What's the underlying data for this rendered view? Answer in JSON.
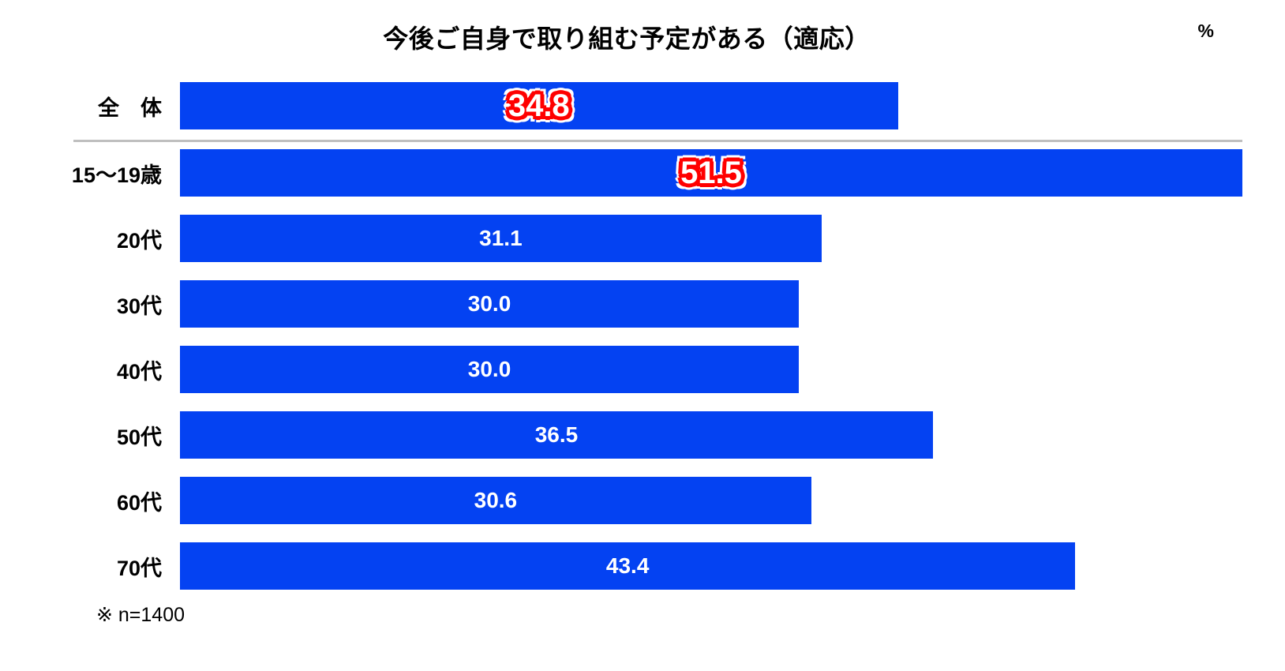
{
  "chart_data": {
    "type": "bar",
    "orientation": "horizontal",
    "title": "今後ご自身で取り組む予定がある（適応）",
    "unit_label": "%",
    "note": "※ n=1400",
    "categories": [
      "全　体",
      "15～19歳",
      "20代",
      "30代",
      "40代",
      "50代",
      "60代",
      "70代"
    ],
    "values": [
      34.8,
      51.5,
      31.1,
      30.0,
      30.0,
      36.5,
      30.6,
      43.4
    ],
    "value_labels": [
      "34.8",
      "51.5",
      "31.1",
      "30.0",
      "30.0",
      "36.5",
      "30.6",
      "43.4"
    ],
    "emphasized_indices": [
      0,
      1
    ],
    "xlabel": "%",
    "ylabel": "",
    "xlim": [
      0,
      51.5
    ],
    "grid": false,
    "legend": false,
    "separator_after_index": 0,
    "colors": {
      "bar": "#0442F2",
      "value_label_on_bar": "#FFFFFF",
      "emphasized_outline": "#FF0000",
      "emphasized_fill": "#FFFFFF",
      "separator_line": "#BFBFBF",
      "text": "#000000",
      "background": "#FFFFFF"
    }
  }
}
